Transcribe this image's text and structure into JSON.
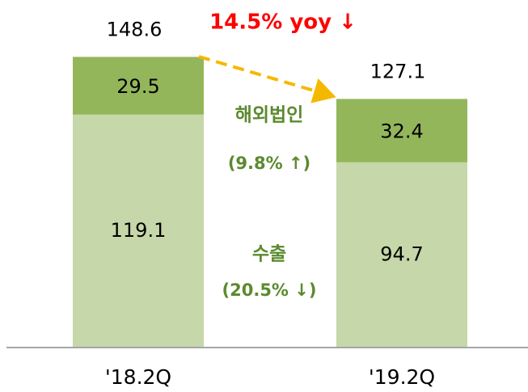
{
  "chart_data": {
    "type": "stacked_bar",
    "categories": [
      "'18.2Q",
      "'19.2Q"
    ],
    "series": [
      {
        "name": "수출",
        "color": "#c6d7a9",
        "values": [
          119.1,
          94.7
        ]
      },
      {
        "name": "해외법인",
        "color": "#93b65b",
        "values": [
          29.5,
          32.4
        ]
      }
    ],
    "totals": [
      148.6,
      127.1
    ],
    "annotations": [
      "14.5% yoy ↓",
      "(9.8% ↑)",
      "(20.5% ↓)"
    ],
    "ylim": [
      0,
      150
    ]
  }
}
